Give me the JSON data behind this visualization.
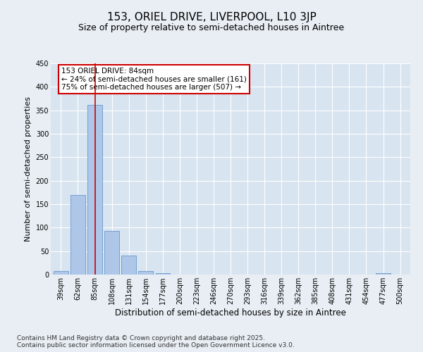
{
  "title": "153, ORIEL DRIVE, LIVERPOOL, L10 3JP",
  "subtitle": "Size of property relative to semi-detached houses in Aintree",
  "xlabel": "Distribution of semi-detached houses by size in Aintree",
  "ylabel": "Number of semi-detached properties",
  "categories": [
    "39sqm",
    "62sqm",
    "85sqm",
    "108sqm",
    "131sqm",
    "154sqm",
    "177sqm",
    "200sqm",
    "223sqm",
    "246sqm",
    "270sqm",
    "293sqm",
    "316sqm",
    "339sqm",
    "362sqm",
    "385sqm",
    "408sqm",
    "431sqm",
    "454sqm",
    "477sqm",
    "500sqm"
  ],
  "values": [
    7,
    170,
    362,
    93,
    40,
    8,
    3,
    0,
    0,
    0,
    0,
    0,
    0,
    0,
    0,
    0,
    0,
    0,
    0,
    3,
    0
  ],
  "bar_color": "#aec6e8",
  "bar_edge_color": "#6699cc",
  "vline_x": 2,
  "vline_color": "#cc0000",
  "annotation_text": "153 ORIEL DRIVE: 84sqm\n← 24% of semi-detached houses are smaller (161)\n75% of semi-detached houses are larger (507) →",
  "annotation_box_color": "#ffffff",
  "annotation_box_edge_color": "#cc0000",
  "ylim": [
    0,
    450
  ],
  "yticks": [
    0,
    50,
    100,
    150,
    200,
    250,
    300,
    350,
    400,
    450
  ],
  "bg_color": "#e8eef4",
  "plot_bg_color": "#d8e4f0",
  "footer": "Contains HM Land Registry data © Crown copyright and database right 2025.\nContains public sector information licensed under the Open Government Licence v3.0.",
  "title_fontsize": 11,
  "subtitle_fontsize": 9,
  "xlabel_fontsize": 8.5,
  "ylabel_fontsize": 8,
  "tick_fontsize": 7,
  "annotation_fontsize": 7.5,
  "footer_fontsize": 6.5
}
